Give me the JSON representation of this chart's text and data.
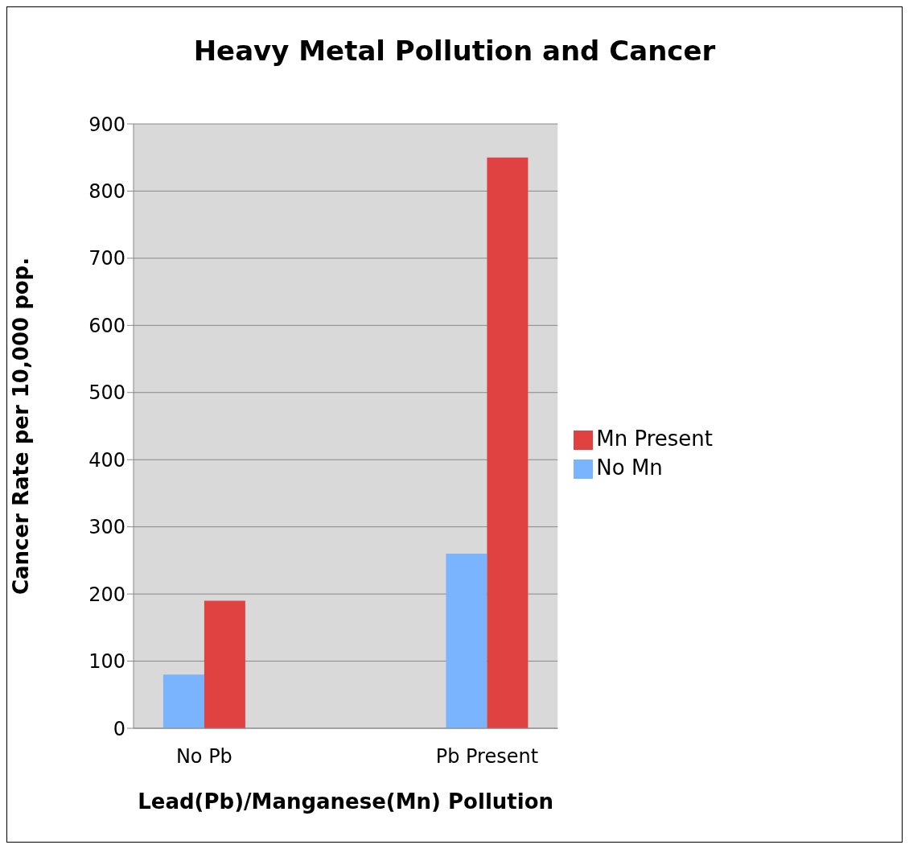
{
  "chart_data": {
    "type": "bar",
    "title": "Heavy Metal Pollution and Cancer",
    "xlabel": "Lead(Pb)/Manganese(Mn) Pollution",
    "ylabel": "Cancer Rate per 10,000 pop.",
    "categories": [
      "No Pb",
      null,
      "Pb Present"
    ],
    "series": [
      {
        "name": "No Mn",
        "color": "#7ab4fe",
        "values": [
          80,
          null,
          260
        ]
      },
      {
        "name": "Mn Present",
        "color": "#e04141",
        "values": [
          190,
          null,
          850
        ]
      }
    ],
    "ylim": [
      0,
      900
    ],
    "yticks": [
      0,
      100,
      200,
      300,
      400,
      500,
      600,
      700,
      800,
      900
    ],
    "grid": "y",
    "legend": "right"
  }
}
